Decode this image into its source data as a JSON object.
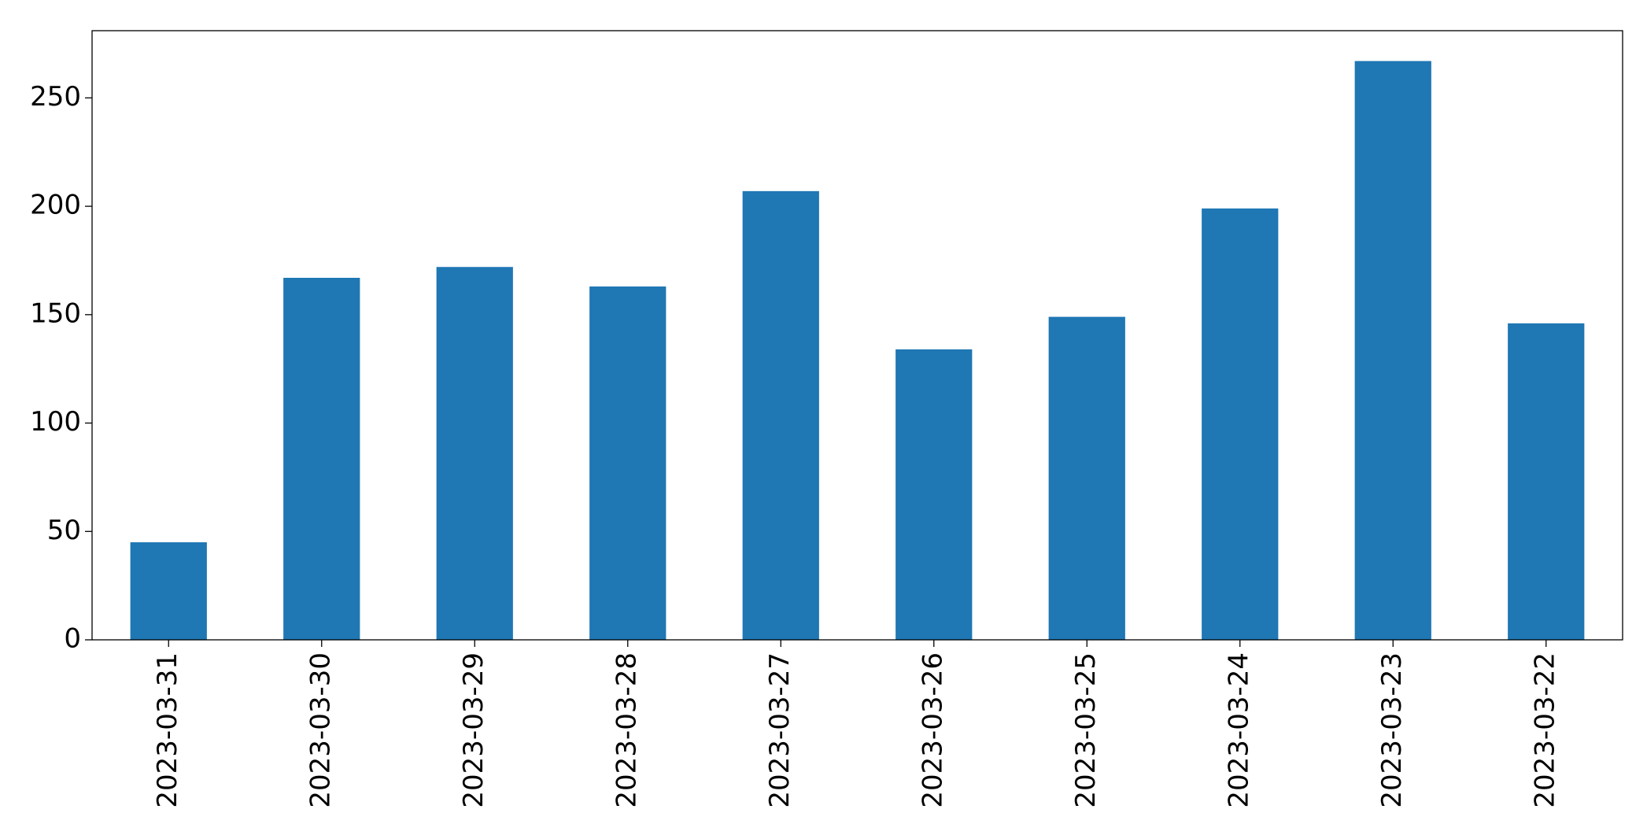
{
  "chart_data": {
    "type": "bar",
    "categories": [
      "2023-03-31",
      "2023-03-30",
      "2023-03-29",
      "2023-03-28",
      "2023-03-27",
      "2023-03-26",
      "2023-03-25",
      "2023-03-24",
      "2023-03-23",
      "2023-03-22"
    ],
    "values": [
      45,
      167,
      172,
      163,
      207,
      134,
      149,
      199,
      267,
      146
    ],
    "color": "#1f77b4",
    "ylim": [
      0,
      281
    ],
    "yticks": [
      0,
      50,
      100,
      150,
      200,
      250
    ],
    "grid": false
  }
}
